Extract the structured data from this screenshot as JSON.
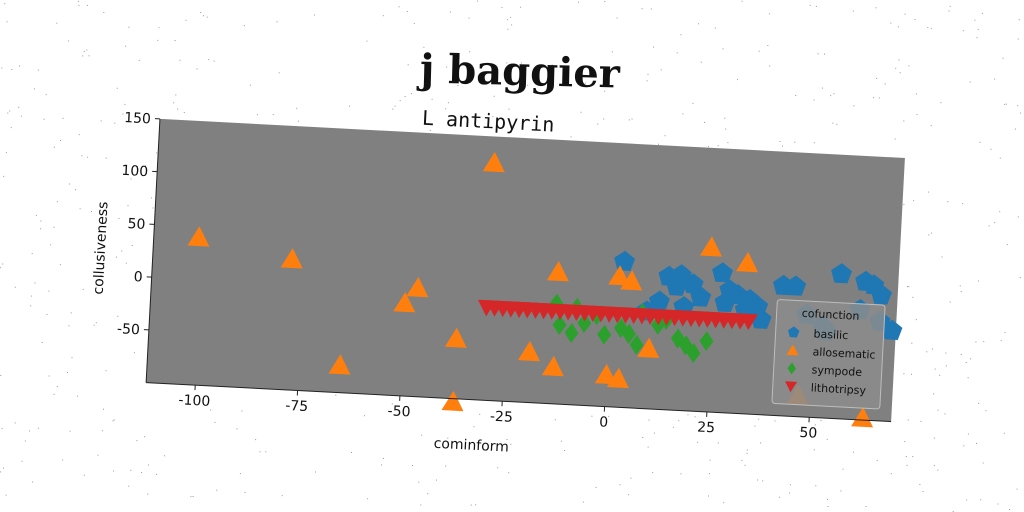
{
  "suptitle": "j baggier",
  "chart_data": {
    "type": "scatter",
    "title": "L antipyrin",
    "xlabel": "cominform",
    "ylabel": "collusiveness",
    "xlim": [
      -112,
      70
    ],
    "ylim": [
      -100,
      150
    ],
    "xticks": [
      -100,
      -75,
      -50,
      -25,
      0,
      25,
      50
    ],
    "yticks": [
      -50,
      0,
      50,
      100,
      150
    ],
    "grid": false,
    "legend": {
      "title": "cofunction",
      "placement": "lower-right"
    },
    "colors": {
      "plot_bg": "#808080",
      "basilic": "#1f77b4",
      "allosematic": "#ff7f0e",
      "sympode": "#2ca02c",
      "lithotripsy": "#d62728"
    },
    "series": [
      {
        "name": "basilic",
        "marker": "pentagon",
        "points": [
          [
            3,
            38
          ],
          [
            14,
            26
          ],
          [
            17,
            28
          ],
          [
            16,
            17
          ],
          [
            20,
            20
          ],
          [
            27,
            32
          ],
          [
            29,
            16
          ],
          [
            31,
            12
          ],
          [
            34,
            8
          ],
          [
            36,
            2
          ],
          [
            33,
            -2
          ],
          [
            37,
            -10
          ],
          [
            42,
            23
          ],
          [
            45,
            23
          ],
          [
            48,
            -3
          ],
          [
            52,
            -13
          ],
          [
            53,
            -18
          ],
          [
            56,
            37
          ],
          [
            62,
            31
          ],
          [
            64,
            28
          ],
          [
            61,
            4
          ],
          [
            66,
            -6
          ],
          [
            69,
            -14
          ],
          [
            66,
            19
          ],
          [
            22,
            8
          ],
          [
            28,
            4
          ],
          [
            12,
            2
          ],
          [
            9,
            -8
          ],
          [
            18,
            -2
          ]
        ]
      },
      {
        "name": "allosematic",
        "marker": "triangle-up",
        "points": [
          [
            -101,
            40
          ],
          [
            -78,
            24
          ],
          [
            -30,
            125
          ],
          [
            -65,
            -74
          ],
          [
            -47,
            3
          ],
          [
            -50,
            -12
          ],
          [
            -37,
            -43
          ],
          [
            -37,
            -103
          ],
          [
            -19,
            -52
          ],
          [
            -13,
            -65
          ],
          [
            -13,
            25
          ],
          [
            0,
            -70
          ],
          [
            3,
            -73
          ],
          [
            2,
            24
          ],
          [
            5,
            20
          ],
          [
            10,
            -43
          ],
          [
            24,
            56
          ],
          [
            33,
            43
          ],
          [
            47,
            -80
          ],
          [
            63,
            -98
          ]
        ]
      },
      {
        "name": "sympode",
        "marker": "diamond",
        "points": [
          [
            -13,
            -5
          ],
          [
            -12,
            -25
          ],
          [
            -9,
            -32
          ],
          [
            -8,
            -8
          ],
          [
            -3,
            -14
          ],
          [
            -1,
            -32
          ],
          [
            3,
            -25
          ],
          [
            5,
            -30
          ],
          [
            7,
            -40
          ],
          [
            8,
            -10
          ],
          [
            12,
            -20
          ],
          [
            17,
            -32
          ],
          [
            19,
            -38
          ],
          [
            21,
            -45
          ],
          [
            24,
            -33
          ],
          [
            14,
            -15
          ],
          [
            -6,
            -22
          ]
        ]
      },
      {
        "name": "lithotripsy",
        "marker": "triangle-down",
        "points": [
          [
            -30,
            -12
          ],
          [
            -28,
            -12
          ],
          [
            -26,
            -12
          ],
          [
            -24,
            -12
          ],
          [
            -22,
            -12
          ],
          [
            -20,
            -12
          ],
          [
            -18,
            -12
          ],
          [
            -16,
            -12
          ],
          [
            -14,
            -12
          ],
          [
            -12,
            -12
          ],
          [
            -10,
            -12
          ],
          [
            -8,
            -12
          ],
          [
            -6,
            -12
          ],
          [
            -4,
            -12
          ],
          [
            -2,
            -12
          ],
          [
            0,
            -12
          ],
          [
            2,
            -12
          ],
          [
            4,
            -12
          ],
          [
            6,
            -12
          ],
          [
            8,
            -12
          ],
          [
            10,
            -12
          ],
          [
            12,
            -12
          ],
          [
            14,
            -12
          ],
          [
            16,
            -12
          ],
          [
            18,
            -12
          ],
          [
            20,
            -12
          ],
          [
            22,
            -12
          ],
          [
            24,
            -12
          ],
          [
            26,
            -12
          ],
          [
            28,
            -12
          ],
          [
            30,
            -12
          ],
          [
            32,
            -12
          ],
          [
            34,
            -12
          ]
        ]
      }
    ]
  }
}
